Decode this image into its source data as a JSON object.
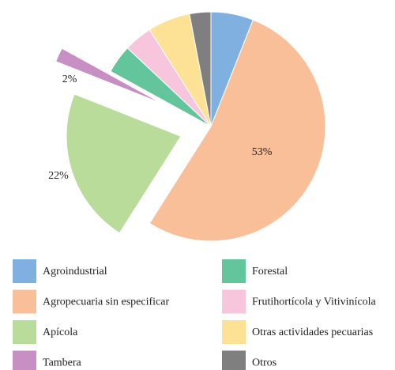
{
  "chart_data": {
    "type": "pie",
    "categories": [
      "Agroindustrial",
      "Agropecuaria sin especificar",
      "Apícola",
      "Tambera",
      "Forestal",
      "Frutihortícola y Vitivinícola",
      "Otras actividades pecuarias",
      "Otros"
    ],
    "values": [
      6,
      53,
      22,
      2,
      4,
      4,
      6,
      3
    ],
    "value_labels": [
      null,
      "53%",
      "22%",
      "2%",
      null,
      null,
      null,
      null
    ],
    "colors": [
      "#7fb0e0",
      "#f9bf98",
      "#b9dc9b",
      "#c78fc3",
      "#62c59c",
      "#f8c6dc",
      "#fde296",
      "#7f7f80"
    ]
  }
}
